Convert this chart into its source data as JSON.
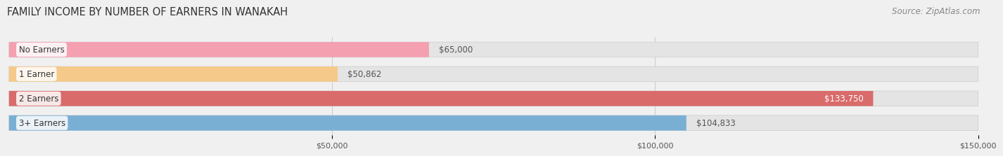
{
  "title": "FAMILY INCOME BY NUMBER OF EARNERS IN WANAKAH",
  "source": "Source: ZipAtlas.com",
  "categories": [
    "No Earners",
    "1 Earner",
    "2 Earners",
    "3+ Earners"
  ],
  "values": [
    65000,
    50862,
    133750,
    104833
  ],
  "bar_colors": [
    "#f4a0b0",
    "#f5c98a",
    "#d96b6b",
    "#7aafd4"
  ],
  "label_colors": [
    "#555555",
    "#555555",
    "#ffffff",
    "#555555"
  ],
  "xlim": [
    0,
    150000
  ],
  "xticks": [
    50000,
    100000,
    150000
  ],
  "xtick_labels": [
    "$50,000",
    "$100,000",
    "$150,000"
  ],
  "background_color": "#f0f0f0",
  "bar_bg_color": "#e4e4e4",
  "bar_height": 0.62,
  "title_fontsize": 10.5,
  "source_fontsize": 8.5,
  "label_fontsize": 8.5,
  "category_fontsize": 8.5
}
